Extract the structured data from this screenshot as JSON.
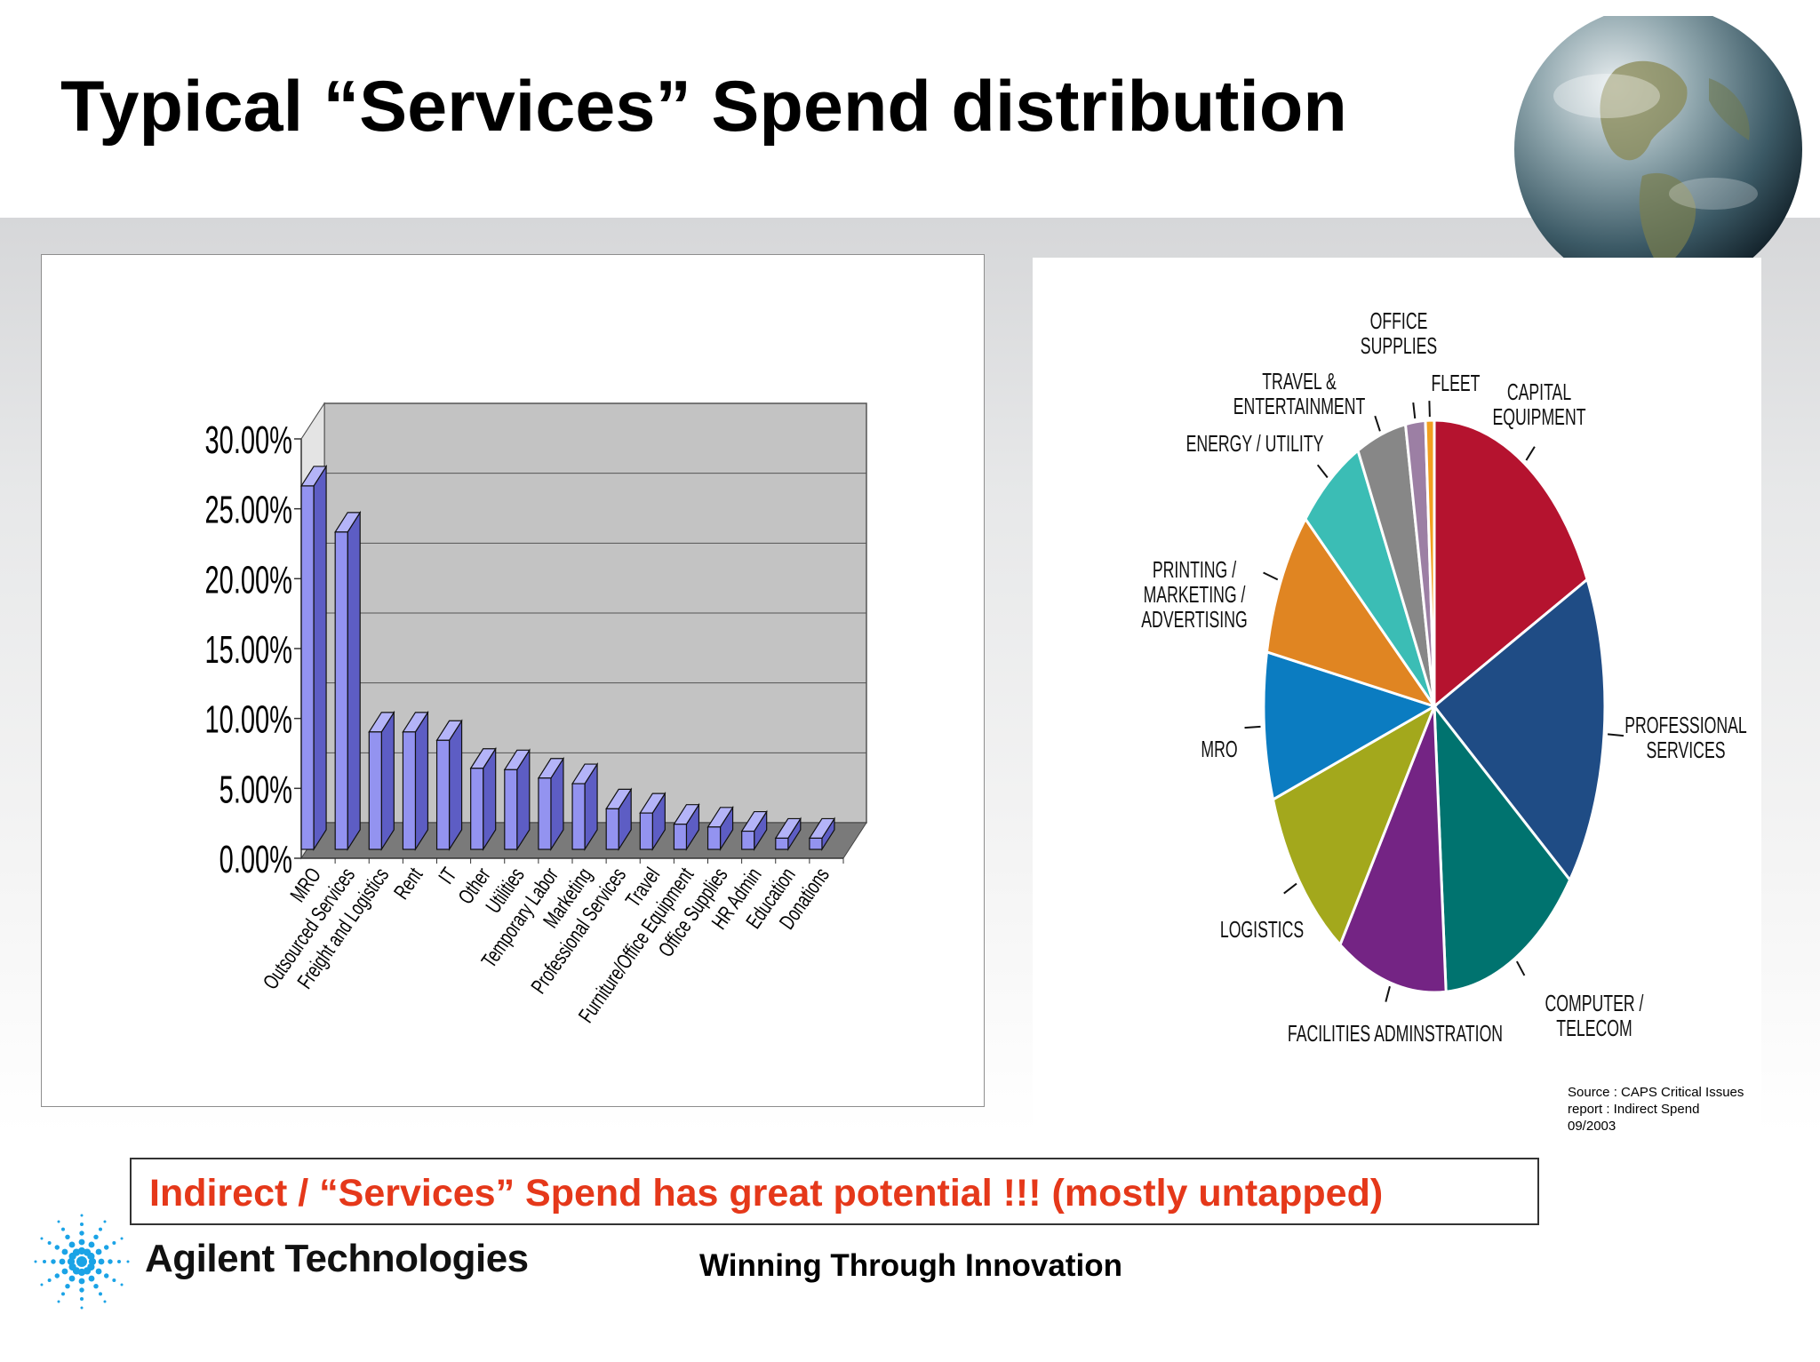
{
  "slide": {
    "title": "Typical “Services” Spend distribution",
    "callout": "Indirect / “Services” Spend has great potential !!! (mostly untapped)",
    "tagline": "Winning Through Innovation",
    "logo_text": "Agilent Technologies",
    "source_lines": [
      "Source : CAPS Critical Issues",
      "report : Indirect Spend",
      "09/2003"
    ]
  },
  "colors": {
    "bar_fill": "#9393f0",
    "bar_side": "#5d5dc4",
    "bar_top": "#b4b4f8",
    "plot_back": "#c3c3c3",
    "plot_floor": "#7a7a7a",
    "callout_text": "#e5381a"
  },
  "chart_data": [
    {
      "type": "bar",
      "style": "3d-column",
      "categories": [
        "MRO",
        "Outsourced Services",
        "Freight and Logistics",
        "Rent",
        "IT",
        "Other",
        "Utilities",
        "Temporary Labor",
        "Marketing",
        "Professional Services",
        "Travel",
        "Furniture/Office Equipment",
        "Office Supplies",
        "HR Admin",
        "Education",
        "Donations"
      ],
      "values": [
        26.0,
        22.7,
        8.4,
        8.4,
        7.8,
        5.8,
        5.7,
        5.1,
        4.7,
        2.9,
        2.6,
        1.8,
        1.6,
        1.3,
        0.8,
        0.8
      ],
      "y_ticks": [
        "0.00%",
        "5.00%",
        "10.00%",
        "15.00%",
        "20.00%",
        "25.00%",
        "30.00%"
      ],
      "ylim": [
        0,
        30
      ],
      "grid": true,
      "legend": "none"
    },
    {
      "type": "pie",
      "slices": [
        {
          "label": "CAPITAL EQUIPMENT",
          "value": 17,
          "color": "#b5132f"
        },
        {
          "label": "PROFESSIONAL SERVICES",
          "value": 17,
          "color": "#1f4c85"
        },
        {
          "label": "COMPUTER / TELECOM",
          "value": 13,
          "color": "#00736f"
        },
        {
          "label": "FACILITIES ADMINSTRATION",
          "value": 10,
          "color": "#742484"
        },
        {
          "label": "LOGISTICS",
          "value": 10,
          "color": "#a3a81c"
        },
        {
          "label": "MRO",
          "value": 8,
          "color": "#0b7cc1"
        },
        {
          "label": "PRINTING / MARKETING / ADVERTISING",
          "value": 8,
          "color": "#e08522"
        },
        {
          "label": "ENERGY / UTILITY",
          "value": 6,
          "color": "#3bbdb5"
        },
        {
          "label": "TRAVEL & ENTERTAINMENT",
          "value": 4.5,
          "color": "#878787"
        },
        {
          "label": "OFFICE SUPPLIES",
          "value": 1.8,
          "color": "#9c7fa4"
        },
        {
          "label": "FLEET",
          "value": 0.8,
          "color": "#f29f20"
        }
      ]
    }
  ]
}
